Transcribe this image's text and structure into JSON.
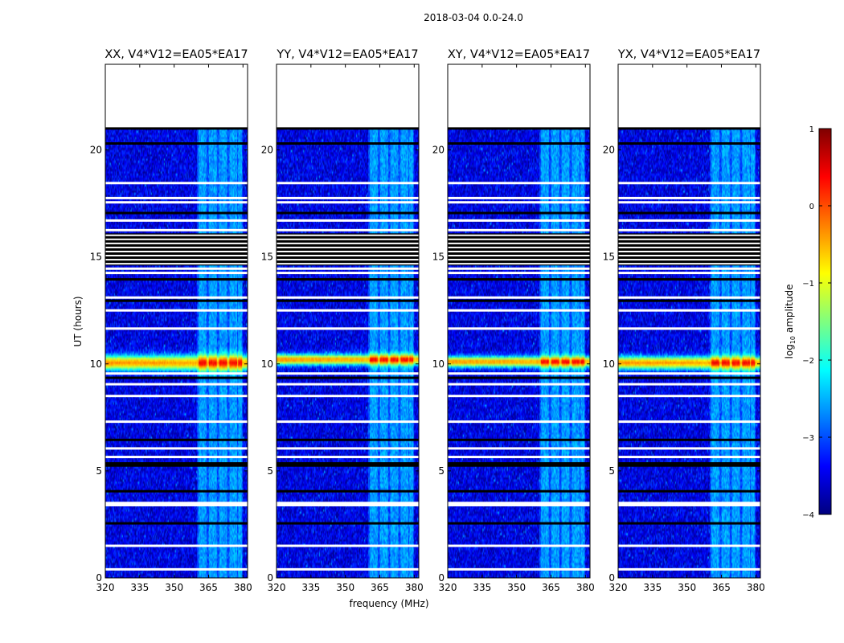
{
  "chart_data": {
    "type": "heatmap",
    "suptitle": "2018-03-04 0.0-24.0",
    "xlabel": "frequency (MHz)",
    "ylabel": "UT (hours)",
    "xlim": [
      320,
      382
    ],
    "ylim": [
      0,
      24
    ],
    "xticks": [
      320,
      335,
      350,
      365,
      380
    ],
    "yticks": [
      0,
      5,
      10,
      15,
      20
    ],
    "data_end_hour": 21.0,
    "rfi_band_mhz": [
      360,
      380
    ],
    "rfi_subchannels_mhz": [
      [
        360.5,
        364.0
      ],
      [
        365.0,
        368.5
      ],
      [
        369.5,
        373.0
      ],
      [
        374.0,
        377.5
      ],
      [
        378.0,
        379.5
      ]
    ],
    "panels": [
      {
        "title": "XX, V4*V12=EA05*EA17",
        "peak_hour": 10.05,
        "peak_halfwidth_hours": 0.35
      },
      {
        "title": "YY, V4*V12=EA05*EA17",
        "peak_hour": 10.2,
        "peak_halfwidth_hours": 0.25
      },
      {
        "title": "XY, V4*V12=EA05*EA17",
        "peak_hour": 10.1,
        "peak_halfwidth_hours": 0.25
      },
      {
        "title": "YX, V4*V12=EA05*EA17",
        "peak_hour": 10.05,
        "peak_halfwidth_hours": 0.3
      }
    ],
    "flagged_white_hours": [
      0.4,
      1.5,
      3.4,
      3.5,
      5.65,
      6.05,
      7.3,
      8.5,
      9.05,
      9.55,
      11.65,
      12.5,
      13.1,
      14.25,
      14.45,
      16.25,
      16.7,
      17.55,
      17.75,
      18.45
    ],
    "flagged_black_hours": [
      2.55,
      4.05,
      5.25,
      5.35,
      6.45,
      9.35,
      12.95,
      13.95,
      17.05,
      20.3
    ],
    "dense_flag_block_hours": [
      14.6,
      16.1
    ],
    "colorbar": {
      "label": "log",
      "label_sub": "10",
      "label_suffix": " amplitude",
      "min": -4,
      "max": 1,
      "ticks": [
        "1",
        "0",
        "−1",
        "−2",
        "−3",
        "−4"
      ],
      "tick_values": [
        1,
        0,
        -1,
        -2,
        -3,
        -4
      ],
      "colormap": "jet",
      "colors": [
        "#00007f",
        "#0000ff",
        "#007fff",
        "#00ffff",
        "#7fff7f",
        "#ffff00",
        "#ff7f00",
        "#ff0000",
        "#7f0000"
      ]
    }
  }
}
